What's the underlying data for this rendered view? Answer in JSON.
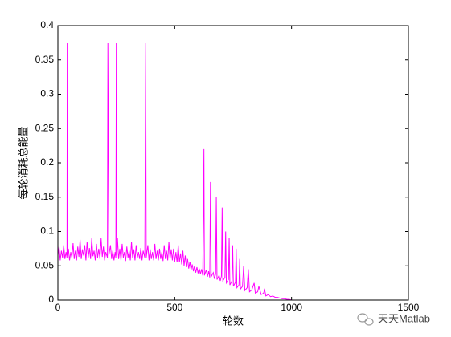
{
  "chart_data": {
    "type": "line",
    "x_label": "轮数",
    "y_label": "每轮消耗总能量",
    "color": "#ff00ff",
    "xlim": [
      0,
      1500
    ],
    "xticks": [
      0,
      500,
      1000,
      1500
    ],
    "ylim": [
      0,
      0.4
    ],
    "yticks": [
      0,
      0.05,
      0.1,
      0.15,
      0.2,
      0.25,
      0.3,
      0.35,
      0.4
    ],
    "box": true,
    "x": [
      0,
      5,
      10,
      15,
      20,
      25,
      30,
      35,
      39,
      40,
      41,
      45,
      50,
      55,
      60,
      65,
      70,
      75,
      80,
      85,
      90,
      95,
      100,
      105,
      110,
      115,
      120,
      125,
      130,
      135,
      140,
      145,
      150,
      155,
      160,
      165,
      170,
      175,
      180,
      185,
      190,
      195,
      200,
      205,
      212,
      214,
      216,
      218,
      225,
      230,
      235,
      240,
      245,
      248,
      250,
      252,
      255,
      260,
      265,
      270,
      275,
      280,
      285,
      290,
      295,
      300,
      305,
      310,
      315,
      320,
      325,
      330,
      335,
      340,
      345,
      350,
      355,
      360,
      365,
      372,
      374,
      376,
      378,
      385,
      390,
      395,
      400,
      405,
      410,
      415,
      420,
      425,
      430,
      435,
      440,
      445,
      450,
      455,
      460,
      465,
      470,
      475,
      480,
      485,
      490,
      495,
      500,
      505,
      510,
      515,
      520,
      525,
      530,
      535,
      540,
      545,
      550,
      555,
      560,
      565,
      570,
      575,
      580,
      585,
      590,
      595,
      600,
      605,
      610,
      615,
      620,
      623,
      625,
      627,
      635,
      640,
      645,
      650,
      653,
      656,
      665,
      670,
      675,
      678,
      681,
      690,
      695,
      700,
      703,
      706,
      715,
      718,
      721,
      730,
      733,
      736,
      745,
      748,
      751,
      760,
      763,
      766,
      775,
      778,
      781,
      790,
      795,
      800,
      810,
      815,
      820,
      830,
      840,
      845,
      855,
      860,
      870,
      880,
      885,
      890,
      900,
      910,
      920,
      930,
      940,
      950,
      960,
      970,
      980,
      990,
      1000
    ],
    "values": [
      0.065,
      0.078,
      0.058,
      0.072,
      0.062,
      0.08,
      0.06,
      0.07,
      0.062,
      0.375,
      0.065,
      0.075,
      0.058,
      0.07,
      0.062,
      0.083,
      0.06,
      0.072,
      0.058,
      0.078,
      0.063,
      0.088,
      0.06,
      0.074,
      0.065,
      0.08,
      0.058,
      0.085,
      0.062,
      0.076,
      0.06,
      0.09,
      0.064,
      0.072,
      0.058,
      0.082,
      0.062,
      0.075,
      0.06,
      0.09,
      0.063,
      0.078,
      0.058,
      0.07,
      0.062,
      0.375,
      0.23,
      0.065,
      0.08,
      0.06,
      0.072,
      0.058,
      0.07,
      0.062,
      0.375,
      0.065,
      0.09,
      0.06,
      0.075,
      0.058,
      0.082,
      0.062,
      0.07,
      0.057,
      0.078,
      0.062,
      0.072,
      0.058,
      0.085,
      0.061,
      0.074,
      0.058,
      0.08,
      0.062,
      0.07,
      0.06,
      0.076,
      0.058,
      0.072,
      0.062,
      0.232,
      0.375,
      0.062,
      0.08,
      0.058,
      0.074,
      0.06,
      0.07,
      0.058,
      0.082,
      0.06,
      0.072,
      0.058,
      0.075,
      0.06,
      0.07,
      0.057,
      0.08,
      0.06,
      0.072,
      0.058,
      0.085,
      0.06,
      0.074,
      0.058,
      0.075,
      0.056,
      0.07,
      0.055,
      0.08,
      0.055,
      0.068,
      0.052,
      0.072,
      0.05,
      0.065,
      0.048,
      0.06,
      0.046,
      0.056,
      0.044,
      0.052,
      0.042,
      0.05,
      0.04,
      0.048,
      0.039,
      0.046,
      0.038,
      0.045,
      0.036,
      0.135,
      0.22,
      0.036,
      0.044,
      0.034,
      0.042,
      0.033,
      0.172,
      0.034,
      0.04,
      0.031,
      0.038,
      0.15,
      0.03,
      0.036,
      0.028,
      0.035,
      0.135,
      0.028,
      0.033,
      0.1,
      0.025,
      0.03,
      0.09,
      0.022,
      0.028,
      0.08,
      0.02,
      0.026,
      0.075,
      0.018,
      0.022,
      0.06,
      0.016,
      0.02,
      0.05,
      0.014,
      0.018,
      0.045,
      0.012,
      0.015,
      0.025,
      0.01,
      0.012,
      0.02,
      0.008,
      0.01,
      0.015,
      0.006,
      0.008,
      0.005,
      0.006,
      0.004,
      0.004,
      0.003,
      0.002,
      0.002,
      0.001,
      0.001,
      0
    ]
  },
  "watermark": "天天Matlab"
}
